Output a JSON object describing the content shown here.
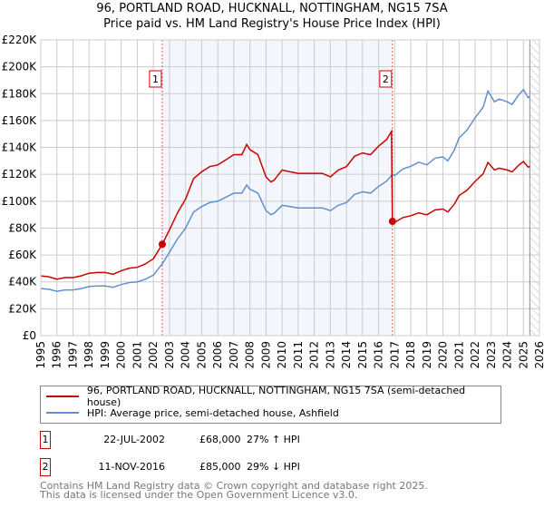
{
  "title_line1": "96, PORTLAND ROAD, HUCKNALL, NOTTINGHAM, NG15 7SA",
  "title_line2": "Price paid vs. HM Land Registry's House Price Index (HPI)",
  "chart_data": {
    "type": "line",
    "xlim": [
      1995,
      2026
    ],
    "ylim": [
      0,
      220000
    ],
    "x_ticks": [
      "1995",
      "1996",
      "1997",
      "1998",
      "1999",
      "2000",
      "2001",
      "2002",
      "2003",
      "2004",
      "2005",
      "2006",
      "2007",
      "2008",
      "2009",
      "2010",
      "2011",
      "2012",
      "2013",
      "2014",
      "2015",
      "2016",
      "2017",
      "2018",
      "2019",
      "2020",
      "2021",
      "2022",
      "2023",
      "2024",
      "2025",
      "2026"
    ],
    "y_ticks": [
      "£0",
      "£20K",
      "£40K",
      "£60K",
      "£80K",
      "£100K",
      "£120K",
      "£140K",
      "£160K",
      "£180K",
      "£200K",
      "£220K"
    ],
    "grid": true,
    "shaded_period": [
      2002.55,
      2016.86
    ],
    "hatched_after": 2025.4,
    "series": [
      {
        "name": "96, PORTLAND ROAD, HUCKNALL, NOTTINGHAM, NG15 7SA (semi-detached house)",
        "color": "#cc0000",
        "x": [
          1995,
          1995.5,
          1996,
          1996.5,
          1997,
          1997.5,
          1998,
          1998.5,
          1999,
          1999.5,
          2000,
          2000.5,
          2001,
          2001.5,
          2002,
          2002.55,
          2003,
          2003.5,
          2004,
          2004.5,
          2005,
          2005.5,
          2006,
          2006.5,
          2007,
          2007.5,
          2007.8,
          2008,
          2008.5,
          2009,
          2009.3,
          2009.5,
          2010,
          2010.5,
          2011,
          2011.5,
          2012,
          2012.5,
          2013,
          2013.5,
          2014,
          2014.5,
          2015,
          2015.5,
          2016,
          2016.5,
          2016.8,
          2016.86,
          2017,
          2017.5,
          2018,
          2018.5,
          2019,
          2019.5,
          2020,
          2020.3,
          2020.7,
          2021,
          2021.5,
          2022,
          2022.5,
          2022.8,
          2023.2,
          2023.5,
          2024,
          2024.3,
          2024.7,
          2025,
          2025.3,
          2025.4
        ],
        "y": [
          44500,
          43800,
          41900,
          43200,
          43200,
          44500,
          46400,
          47000,
          47000,
          45700,
          48300,
          50200,
          50800,
          53300,
          57200,
          68000,
          78700,
          91400,
          101600,
          116800,
          121900,
          125700,
          127000,
          130800,
          134600,
          134600,
          142200,
          138400,
          134600,
          118100,
          114300,
          115600,
          123200,
          121900,
          120700,
          120700,
          120700,
          120700,
          118100,
          123200,
          125700,
          133400,
          135900,
          134600,
          141000,
          146000,
          152000,
          85000,
          84300,
          87800,
          89200,
          91300,
          89900,
          93500,
          94200,
          92000,
          97700,
          104100,
          108300,
          114700,
          120400,
          128900,
          123200,
          124600,
          123200,
          121800,
          126700,
          129600,
          125300,
          126000
        ]
      },
      {
        "name": "HPI: Average price, semi-detached house, Ashfield",
        "color": "#6090d0",
        "x": [
          1995,
          1995.5,
          1996,
          1996.5,
          1997,
          1997.5,
          1998,
          1998.5,
          1999,
          1999.5,
          2000,
          2000.5,
          2001,
          2001.5,
          2002,
          2002.55,
          2003,
          2003.5,
          2004,
          2004.5,
          2005,
          2005.5,
          2006,
          2006.5,
          2007,
          2007.5,
          2007.8,
          2008,
          2008.5,
          2009,
          2009.3,
          2009.5,
          2010,
          2010.5,
          2011,
          2011.5,
          2012,
          2012.5,
          2013,
          2013.5,
          2014,
          2014.5,
          2015,
          2015.5,
          2016,
          2016.5,
          2016.86,
          2017,
          2017.5,
          2018,
          2018.5,
          2019,
          2019.5,
          2020,
          2020.3,
          2020.7,
          2021,
          2021.5,
          2022,
          2022.5,
          2022.8,
          2023.2,
          2023.5,
          2024,
          2024.3,
          2024.7,
          2025,
          2025.3,
          2025.4
        ],
        "y": [
          35000,
          34500,
          33000,
          34000,
          34000,
          35000,
          36500,
          37000,
          37000,
          36000,
          38000,
          39500,
          40000,
          42000,
          45000,
          53500,
          62000,
          72000,
          80000,
          92000,
          96000,
          99000,
          100000,
          103000,
          106000,
          106000,
          112000,
          109000,
          106000,
          93000,
          90000,
          91000,
          97000,
          96000,
          95000,
          95000,
          95000,
          95000,
          93000,
          97000,
          99000,
          105000,
          107000,
          106000,
          111000,
          115000,
          120000,
          119000,
          124000,
          126000,
          129000,
          127000,
          132000,
          133000,
          130000,
          138000,
          147000,
          153000,
          162000,
          170000,
          182000,
          174000,
          176000,
          174000,
          172000,
          179000,
          183000,
          177000,
          178000
        ]
      }
    ],
    "annotations": [
      {
        "label": "1",
        "x": 2002.55,
        "y": 68000
      },
      {
        "label": "2",
        "x": 2016.86,
        "y": 85000
      }
    ]
  },
  "legend": {
    "property": "96, PORTLAND ROAD, HUCKNALL, NOTTINGHAM, NG15 7SA (semi-detached house)",
    "hpi": "HPI: Average price, semi-detached house, Ashfield"
  },
  "sales": [
    {
      "num": "1",
      "date": "22-JUL-2002",
      "price": "£68,000",
      "hpi": "27% ↑ HPI"
    },
    {
      "num": "2",
      "date": "11-NOV-2016",
      "price": "£85,000",
      "hpi": "29% ↓ HPI"
    }
  ],
  "footer_line1": "Contains HM Land Registry data © Crown copyright and database right 2025.",
  "footer_line2": "This data is licensed under the Open Government Licence v3.0."
}
